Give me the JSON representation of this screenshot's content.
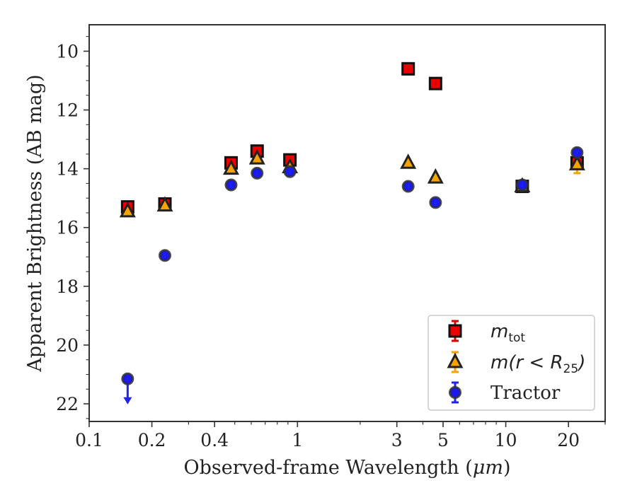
{
  "chart_data": {
    "type": "scatter",
    "xlabel_prefix": "Observed-frame Wavelength (",
    "xlabel_unit": "μm",
    "xlabel_suffix": ")",
    "ylabel": "Apparent Brightness (AB mag)",
    "xscale": "log",
    "xlim": [
      0.1,
      30
    ],
    "ylim": [
      22.6,
      9.1
    ],
    "y_inverted": true,
    "grid": false,
    "legend_loc": "lower-right",
    "x_ticks": [
      {
        "value": 0.1,
        "label": "0.1"
      },
      {
        "value": 0.2,
        "label": "0.2"
      },
      {
        "value": 0.4,
        "label": "0.4"
      },
      {
        "value": 1,
        "label": "1"
      },
      {
        "value": 3,
        "label": "3"
      },
      {
        "value": 5,
        "label": "5"
      },
      {
        "value": 10,
        "label": "10"
      },
      {
        "value": 20,
        "label": "20"
      }
    ],
    "x_minor_ticks": [
      0.3,
      0.5,
      0.6,
      0.7,
      0.8,
      0.9,
      2,
      4,
      6,
      7,
      8,
      9,
      30
    ],
    "y_ticks": [
      {
        "value": 10,
        "label": "10"
      },
      {
        "value": 12,
        "label": "12"
      },
      {
        "value": 14,
        "label": "14"
      },
      {
        "value": 16,
        "label": "16"
      },
      {
        "value": 18,
        "label": "18"
      },
      {
        "value": 20,
        "label": "20"
      },
      {
        "value": 22,
        "label": "22"
      }
    ],
    "series": [
      {
        "name": "m_tot",
        "legend_main": "m",
        "legend_sub": "tot",
        "marker": "square",
        "fill": "#ee0000",
        "edge": "#111111",
        "errcolor": "#dd0000",
        "points": [
          {
            "x": 0.153,
            "y": 15.3,
            "err": 0.15
          },
          {
            "x": 0.231,
            "y": 15.2,
            "err": 0.1
          },
          {
            "x": 0.48,
            "y": 13.8,
            "err": 0
          },
          {
            "x": 0.64,
            "y": 13.4,
            "err": 0
          },
          {
            "x": 0.92,
            "y": 13.7,
            "err": 0
          },
          {
            "x": 3.4,
            "y": 10.6,
            "err": 0
          },
          {
            "x": 4.6,
            "y": 11.1,
            "err": 0
          },
          {
            "x": 12.0,
            "y": 14.6,
            "err": 0
          },
          {
            "x": 22.0,
            "y": 13.8,
            "err": 0
          }
        ]
      },
      {
        "name": "m(r<R25)",
        "legend_main": "m(r < R",
        "legend_sub": "25",
        "legend_close": ")",
        "marker": "triangle",
        "fill": "#f5a300",
        "edge": "#222222",
        "errcolor": "#f5a300",
        "points": [
          {
            "x": 0.153,
            "y": 15.45,
            "err": 0
          },
          {
            "x": 0.231,
            "y": 15.25,
            "err": 0
          },
          {
            "x": 0.48,
            "y": 14.0,
            "err": 0
          },
          {
            "x": 0.64,
            "y": 13.65,
            "err": 0
          },
          {
            "x": 0.92,
            "y": 13.95,
            "err": 0
          },
          {
            "x": 3.4,
            "y": 13.8,
            "err": 0
          },
          {
            "x": 4.6,
            "y": 14.3,
            "err": 0
          },
          {
            "x": 12.0,
            "y": 14.6,
            "err": 0
          },
          {
            "x": 22.0,
            "y": 13.85,
            "err": 0.3
          }
        ]
      },
      {
        "name": "Tractor",
        "legend_main": "Tractor",
        "marker": "circle",
        "fill": "#1a1aee",
        "edge": "#333333",
        "errcolor": "#2222ee",
        "points": [
          {
            "x": 0.153,
            "y": 21.15,
            "err": 0,
            "upper_limit": true
          },
          {
            "x": 0.231,
            "y": 16.95,
            "err": 0
          },
          {
            "x": 0.48,
            "y": 14.55,
            "err": 0
          },
          {
            "x": 0.64,
            "y": 14.15,
            "err": 0
          },
          {
            "x": 0.92,
            "y": 14.1,
            "err": 0
          },
          {
            "x": 3.4,
            "y": 14.6,
            "err": 0
          },
          {
            "x": 4.6,
            "y": 15.15,
            "err": 0
          },
          {
            "x": 12.0,
            "y": 14.55,
            "err": 0
          },
          {
            "x": 22.0,
            "y": 13.45,
            "err": 0
          }
        ]
      }
    ]
  }
}
